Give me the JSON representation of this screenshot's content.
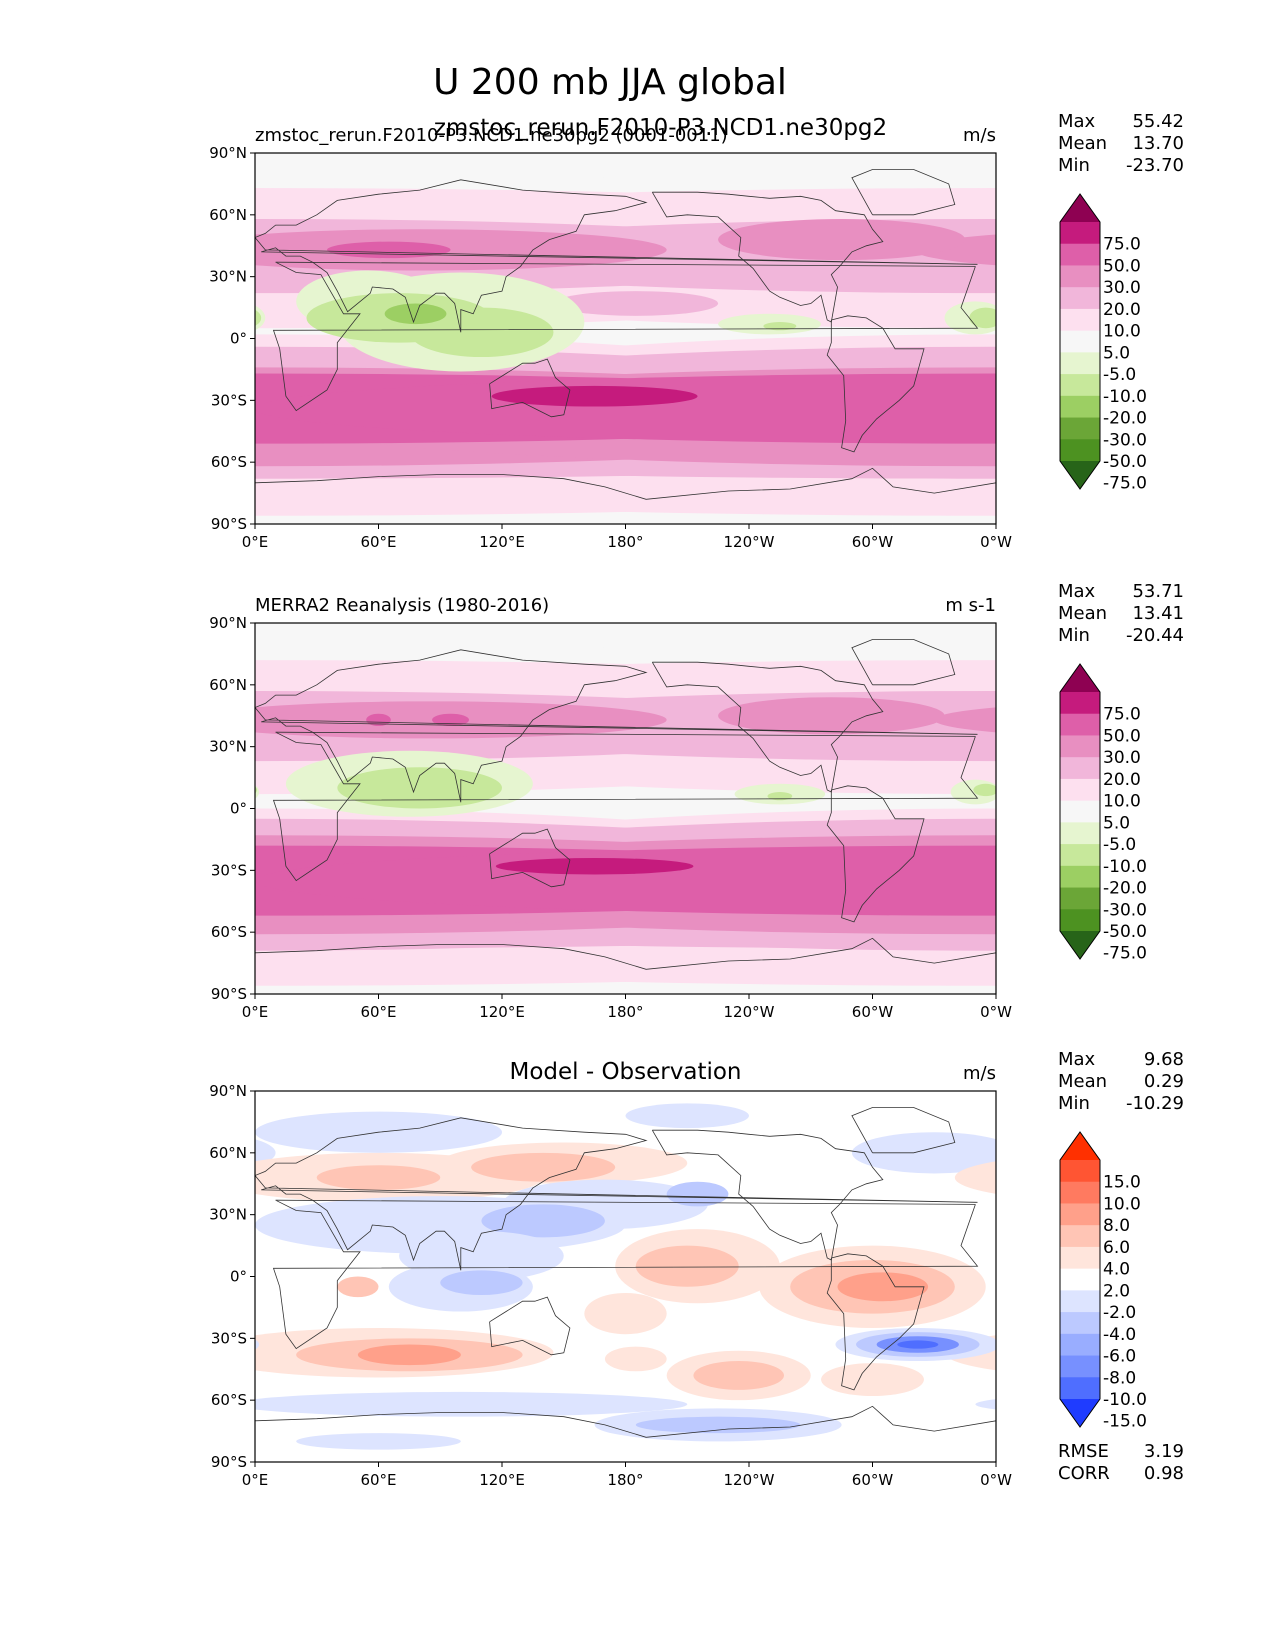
{
  "figure": {
    "main_title": "U 200 mb JJA global",
    "overlap_title": "zmstoc_rerun.F2010-P3.NCD1.ne30pg2",
    "colors": {
      "ocean_bg": "#f7f7f7",
      "coast": "#333333"
    }
  },
  "chart_data": [
    {
      "type": "heatmap",
      "id": "model",
      "left_title": "zmstoc_rerun.F2010-P3.NCD1.ne30pg2 (0001-0011)",
      "center_title": "",
      "units": "m/s",
      "stats": [
        {
          "label": "Max",
          "value": "55.42"
        },
        {
          "label": "Mean",
          "value": "13.70"
        },
        {
          "label": "Min",
          "value": "-23.70"
        }
      ],
      "lat_ticks": [
        "90°N",
        "60°N",
        "30°N",
        "0°",
        "30°S",
        "60°S",
        "90°S"
      ],
      "lon_ticks": [
        "0°E",
        "60°E",
        "120°E",
        "180°",
        "120°W",
        "60°W",
        "0°W"
      ],
      "xlim": [
        0,
        360
      ],
      "ylim": [
        -90,
        90
      ],
      "levels": [
        "75.0",
        "50.0",
        "30.0",
        "20.0",
        "10.0",
        "5.0",
        "-5.0",
        "-10.0",
        "-20.0",
        "-30.0",
        "-50.0",
        "-75.0"
      ],
      "colorbar_colors": [
        "#8e0152",
        "#c51b7d",
        "#de5fa9",
        "#e88fc1",
        "#f1b6da",
        "#fde0ef",
        "#f7f7f7",
        "#e6f5d0",
        "#c7e89b",
        "#9ccf63",
        "#6ba637",
        "#4d9221",
        "#276419"
      ],
      "blobs": [
        {
          "lon": 0,
          "lat": 33,
          "rx": 360,
          "ry": 28,
          "c": "#fde0ef"
        },
        {
          "lon": 0,
          "lat": -38,
          "rx": 360,
          "ry": 40,
          "c": "#fde0ef"
        },
        {
          "lon": 0,
          "lat": 57,
          "rx": 360,
          "ry": 16,
          "c": "#fde0ef"
        },
        {
          "lon": 0,
          "lat": -72,
          "rx": 360,
          "ry": 14,
          "c": "#fde0ef"
        },
        {
          "lon": 0,
          "lat": 40,
          "rx": 300,
          "ry": 18,
          "c": "#f1b6da"
        },
        {
          "lon": 0,
          "lat": -36,
          "rx": 360,
          "ry": 32,
          "c": "#f1b6da"
        },
        {
          "lon": 0,
          "lat": -58,
          "rx": 360,
          "ry": 10,
          "c": "#f1b6da"
        },
        {
          "lon": 0,
          "lat": -38,
          "rx": 360,
          "ry": 24,
          "c": "#e88fc1"
        },
        {
          "lon": 80,
          "lat": 43,
          "rx": 120,
          "ry": 10,
          "c": "#e88fc1"
        },
        {
          "lon": 285,
          "lat": 48,
          "rx": 60,
          "ry": 10,
          "c": "#e88fc1"
        },
        {
          "lon": 185,
          "lat": 17,
          "rx": 40,
          "ry": 6,
          "c": "#f1b6da"
        },
        {
          "lon": 0,
          "lat": -34,
          "rx": 360,
          "ry": 17,
          "c": "#de5fa9"
        },
        {
          "lon": 65,
          "lat": 43,
          "rx": 30,
          "ry": 4,
          "c": "#de5fa9"
        },
        {
          "lon": 165,
          "lat": -28,
          "rx": 50,
          "ry": 5,
          "c": "#c51b7d"
        },
        {
          "lon": 55,
          "lat": 18,
          "rx": 35,
          "ry": 15,
          "c": "#e6f5d0"
        },
        {
          "lon": 100,
          "lat": 8,
          "rx": 60,
          "ry": 24,
          "c": "#e6f5d0"
        },
        {
          "lon": 250,
          "lat": 7,
          "rx": 25,
          "ry": 5,
          "c": "#e6f5d0"
        },
        {
          "lon": 350,
          "lat": 10,
          "rx": 15,
          "ry": 8,
          "c": "#e6f5d0"
        },
        {
          "lon": 70,
          "lat": 10,
          "rx": 45,
          "ry": 12,
          "c": "#c7e89b"
        },
        {
          "lon": 110,
          "lat": 3,
          "rx": 35,
          "ry": 12,
          "c": "#c7e89b"
        },
        {
          "lon": 255,
          "lat": 6,
          "rx": 8,
          "ry": 2,
          "c": "#c7e89b"
        },
        {
          "lon": 355,
          "lat": 10,
          "rx": 8,
          "ry": 5,
          "c": "#c7e89b"
        },
        {
          "lon": 78,
          "lat": 12,
          "rx": 15,
          "ry": 5,
          "c": "#9ccf63"
        },
        {
          "lon": 0,
          "lat": 85,
          "rx": 360,
          "ry": 8,
          "c": "#f7f7f7"
        }
      ]
    },
    {
      "type": "heatmap",
      "id": "reanalysis",
      "left_title": "MERRA2 Reanalysis (1980-2016)",
      "center_title": "",
      "units": "m s-1",
      "stats": [
        {
          "label": "Max",
          "value": "53.71"
        },
        {
          "label": "Mean",
          "value": "13.41"
        },
        {
          "label": "Min",
          "value": "-20.44"
        }
      ],
      "lat_ticks": [
        "90°N",
        "60°N",
        "30°N",
        "0°",
        "30°S",
        "60°S",
        "90°S"
      ],
      "lon_ticks": [
        "0°E",
        "60°E",
        "120°E",
        "180°",
        "120°W",
        "60°W",
        "0°W"
      ],
      "xlim": [
        0,
        360
      ],
      "ylim": [
        -90,
        90
      ],
      "levels": [
        "75.0",
        "50.0",
        "30.0",
        "20.0",
        "10.0",
        "5.0",
        "-5.0",
        "-10.0",
        "-20.0",
        "-30.0",
        "-50.0",
        "-75.0"
      ],
      "colorbar_colors": [
        "#8e0152",
        "#c51b7d",
        "#de5fa9",
        "#e88fc1",
        "#f1b6da",
        "#fde0ef",
        "#f7f7f7",
        "#e6f5d0",
        "#c7e89b",
        "#9ccf63",
        "#6ba637",
        "#4d9221",
        "#276419"
      ],
      "blobs": [
        {
          "lon": 0,
          "lat": 35,
          "rx": 360,
          "ry": 28,
          "c": "#fde0ef"
        },
        {
          "lon": 0,
          "lat": -40,
          "rx": 360,
          "ry": 40,
          "c": "#fde0ef"
        },
        {
          "lon": 0,
          "lat": 58,
          "rx": 360,
          "ry": 14,
          "c": "#fde0ef"
        },
        {
          "lon": 0,
          "lat": -72,
          "rx": 360,
          "ry": 14,
          "c": "#fde0ef"
        },
        {
          "lon": 0,
          "lat": 40,
          "rx": 300,
          "ry": 17,
          "c": "#f1b6da"
        },
        {
          "lon": 0,
          "lat": -37,
          "rx": 360,
          "ry": 32,
          "c": "#f1b6da"
        },
        {
          "lon": 0,
          "lat": -58,
          "rx": 360,
          "ry": 10,
          "c": "#f1b6da"
        },
        {
          "lon": 0,
          "lat": -37,
          "rx": 360,
          "ry": 24,
          "c": "#e88fc1"
        },
        {
          "lon": 85,
          "lat": 43,
          "rx": 115,
          "ry": 9,
          "c": "#e88fc1"
        },
        {
          "lon": 280,
          "lat": 45,
          "rx": 55,
          "ry": 9,
          "c": "#e88fc1"
        },
        {
          "lon": 0,
          "lat": -35,
          "rx": 360,
          "ry": 17,
          "c": "#de5fa9"
        },
        {
          "lon": 95,
          "lat": 43,
          "rx": 9,
          "ry": 3,
          "c": "#de5fa9"
        },
        {
          "lon": 60,
          "lat": 43,
          "rx": 6,
          "ry": 3,
          "c": "#de5fa9"
        },
        {
          "lon": 165,
          "lat": -28,
          "rx": 48,
          "ry": 4,
          "c": "#c51b7d"
        },
        {
          "lon": 75,
          "lat": 12,
          "rx": 60,
          "ry": 16,
          "c": "#e6f5d0"
        },
        {
          "lon": 255,
          "lat": 7,
          "rx": 22,
          "ry": 5,
          "c": "#e6f5d0"
        },
        {
          "lon": 350,
          "lat": 8,
          "rx": 12,
          "ry": 6,
          "c": "#e6f5d0"
        },
        {
          "lon": 80,
          "lat": 10,
          "rx": 40,
          "ry": 10,
          "c": "#c7e89b"
        },
        {
          "lon": 255,
          "lat": 6,
          "rx": 6,
          "ry": 2,
          "c": "#c7e89b"
        },
        {
          "lon": 355,
          "lat": 9,
          "rx": 6,
          "ry": 3,
          "c": "#c7e89b"
        },
        {
          "lon": 0,
          "lat": 85,
          "rx": 360,
          "ry": 8,
          "c": "#f7f7f7"
        }
      ]
    },
    {
      "type": "heatmap",
      "id": "difference",
      "left_title": "",
      "center_title": "Model - Observation",
      "units": "m/s",
      "stats": [
        {
          "label": "Max",
          "value": "9.68"
        },
        {
          "label": "Mean",
          "value": "0.29"
        },
        {
          "label": "Min",
          "value": "-10.29"
        }
      ],
      "extra_stats": [
        {
          "label": "RMSE",
          "value": "3.19"
        },
        {
          "label": "CORR",
          "value": "0.98"
        }
      ],
      "lat_ticks": [
        "90°N",
        "60°N",
        "30°N",
        "0°",
        "30°S",
        "60°S",
        "90°S"
      ],
      "lon_ticks": [
        "0°E",
        "60°E",
        "120°E",
        "180°",
        "120°W",
        "60°W",
        "0°W"
      ],
      "xlim": [
        0,
        360
      ],
      "ylim": [
        -90,
        90
      ],
      "levels": [
        "15.0",
        "10.0",
        "8.0",
        "6.0",
        "4.0",
        "2.0",
        "-2.0",
        "-4.0",
        "-6.0",
        "-8.0",
        "-10.0",
        "-15.0"
      ],
      "colorbar_colors": [
        "#ff3000",
        "#ff5533",
        "#ff7a60",
        "#ffa08a",
        "#ffc5b5",
        "#ffe5dc",
        "#ffffff",
        "#dde4ff",
        "#bcc9ff",
        "#99adff",
        "#7790ff",
        "#4f6eff",
        "#1f3cff"
      ],
      "blobs": [
        {
          "lon": 0,
          "lat": 82,
          "rx": 360,
          "ry": 8,
          "c": "#ffffff"
        },
        {
          "lon": 60,
          "lat": 70,
          "rx": 60,
          "ry": 10,
          "c": "#dde4ff"
        },
        {
          "lon": 330,
          "lat": 60,
          "rx": 40,
          "ry": 10,
          "c": "#dde4ff"
        },
        {
          "lon": 210,
          "lat": 78,
          "rx": 30,
          "ry": 6,
          "c": "#dde4ff"
        },
        {
          "lon": 60,
          "lat": 48,
          "rx": 80,
          "ry": 12,
          "c": "#ffe5dc"
        },
        {
          "lon": 150,
          "lat": 55,
          "rx": 60,
          "ry": 10,
          "c": "#ffe5dc"
        },
        {
          "lon": 60,
          "lat": 48,
          "rx": 30,
          "ry": 6,
          "c": "#ffc5b5"
        },
        {
          "lon": 140,
          "lat": 53,
          "rx": 35,
          "ry": 7,
          "c": "#ffc5b5"
        },
        {
          "lon": 90,
          "lat": 25,
          "rx": 90,
          "ry": 14,
          "c": "#dde4ff"
        },
        {
          "lon": 170,
          "lat": 35,
          "rx": 50,
          "ry": 12,
          "c": "#dde4ff"
        },
        {
          "lon": 215,
          "lat": 40,
          "rx": 15,
          "ry": 6,
          "c": "#bcc9ff"
        },
        {
          "lon": 140,
          "lat": 27,
          "rx": 30,
          "ry": 8,
          "c": "#bcc9ff"
        },
        {
          "lon": 110,
          "lat": 10,
          "rx": 40,
          "ry": 12,
          "c": "#dde4ff"
        },
        {
          "lon": 100,
          "lat": -5,
          "rx": 35,
          "ry": 12,
          "c": "#dde4ff"
        },
        {
          "lon": 110,
          "lat": -3,
          "rx": 20,
          "ry": 6,
          "c": "#bcc9ff"
        },
        {
          "lon": 215,
          "lat": 5,
          "rx": 40,
          "ry": 18,
          "c": "#ffe5dc"
        },
        {
          "lon": 210,
          "lat": 5,
          "rx": 25,
          "ry": 10,
          "c": "#ffc5b5"
        },
        {
          "lon": 300,
          "lat": -5,
          "rx": 55,
          "ry": 20,
          "c": "#ffe5dc"
        },
        {
          "lon": 300,
          "lat": -5,
          "rx": 40,
          "ry": 13,
          "c": "#ffc5b5"
        },
        {
          "lon": 305,
          "lat": -5,
          "rx": 22,
          "ry": 7,
          "c": "#ffa08a"
        },
        {
          "lon": 50,
          "lat": -5,
          "rx": 10,
          "ry": 5,
          "c": "#ffc5b5"
        },
        {
          "lon": 60,
          "lat": -37,
          "rx": 85,
          "ry": 12,
          "c": "#ffe5dc"
        },
        {
          "lon": 75,
          "lat": -38,
          "rx": 55,
          "ry": 8,
          "c": "#ffc5b5"
        },
        {
          "lon": 75,
          "lat": -38,
          "rx": 25,
          "ry": 5,
          "c": "#ffa08a"
        },
        {
          "lon": 180,
          "lat": -18,
          "rx": 20,
          "ry": 10,
          "c": "#ffe5dc"
        },
        {
          "lon": 235,
          "lat": -48,
          "rx": 35,
          "ry": 12,
          "c": "#ffe5dc"
        },
        {
          "lon": 235,
          "lat": -48,
          "rx": 22,
          "ry": 7,
          "c": "#ffc5b5"
        },
        {
          "lon": 185,
          "lat": -40,
          "rx": 15,
          "ry": 6,
          "c": "#ffe5dc"
        },
        {
          "lon": 322,
          "lat": -33,
          "rx": 40,
          "ry": 8,
          "c": "#dde4ff"
        },
        {
          "lon": 322,
          "lat": -33,
          "rx": 30,
          "ry": 6,
          "c": "#bcc9ff"
        },
        {
          "lon": 322,
          "lat": -33,
          "rx": 20,
          "ry": 4,
          "c": "#7790ff"
        },
        {
          "lon": 322,
          "lat": -33,
          "rx": 10,
          "ry": 2,
          "c": "#4f6eff"
        },
        {
          "lon": 100,
          "lat": -62,
          "rx": 110,
          "ry": 6,
          "c": "#dde4ff"
        },
        {
          "lon": 225,
          "lat": -72,
          "rx": 60,
          "ry": 8,
          "c": "#dde4ff"
        },
        {
          "lon": 225,
          "lat": -72,
          "rx": 40,
          "ry": 4,
          "c": "#bcc9ff"
        },
        {
          "lon": 300,
          "lat": -50,
          "rx": 25,
          "ry": 8,
          "c": "#ffe5dc"
        },
        {
          "lon": 60,
          "lat": -80,
          "rx": 40,
          "ry": 4,
          "c": "#dde4ff"
        }
      ]
    }
  ]
}
